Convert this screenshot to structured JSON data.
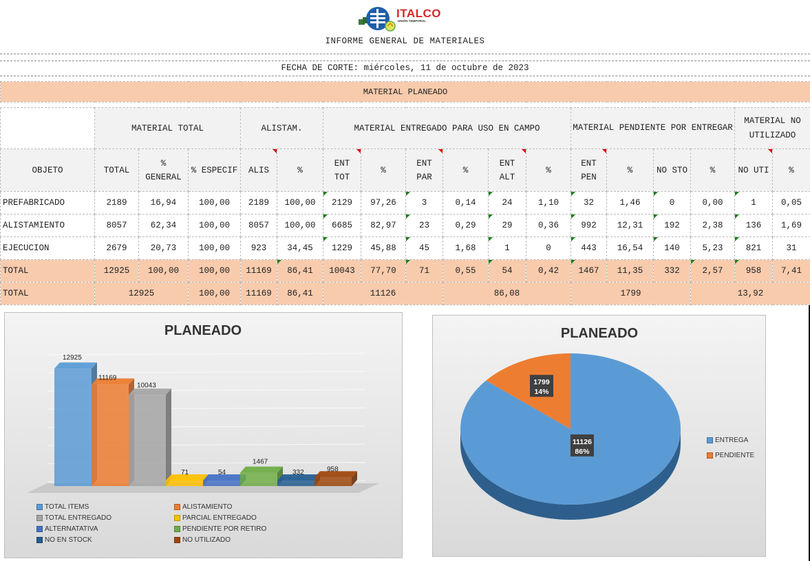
{
  "header": {
    "logo_text": "ITALCO",
    "logo_sub": "UNIÓN TEMPORAL",
    "report_title": "INFORME GENERAL DE MATERIALES",
    "cut_date": "FECHA DE CORTE: miércoles, 11 de octubre de 2023"
  },
  "table": {
    "section_title": "MATERIAL PLANEADO",
    "groups": {
      "total": "MATERIAL TOTAL",
      "alist": "ALISTAM.",
      "entregado": "MATERIAL ENTREGADO PARA USO EN CAMPO",
      "pendiente": "MATERIAL PENDIENTE POR ENTREGAR",
      "no_util": "MATERIAL NO UTILIZADO"
    },
    "columns": [
      "OBJETO",
      "TOTAL",
      "% GENERAL",
      "% ESPECIF",
      "ALIS",
      "%",
      "ENT TOT",
      "%",
      "ENT PAR",
      "%",
      "ENT ALT",
      "%",
      "ENT PEN",
      "%",
      "NO STO",
      "%",
      "NO UTI",
      "%"
    ],
    "rows": [
      {
        "cells": [
          "PREFABRICADO",
          "2189",
          "16,94",
          "100,00",
          "2189",
          "100,00",
          "2129",
          "97,26",
          "3",
          "0,14",
          "24",
          "1,10",
          "32",
          "1,46",
          "0",
          "0,00",
          "1",
          "0,05"
        ]
      },
      {
        "cells": [
          "ALISTAMIENTO",
          "8057",
          "62,34",
          "100,00",
          "8057",
          "100,00",
          "6685",
          "82,97",
          "23",
          "0,29",
          "29",
          "0,36",
          "992",
          "12,31",
          "192",
          "2,38",
          "136",
          "1,69"
        ]
      },
      {
        "cells": [
          "EJECUCION",
          "2679",
          "20,73",
          "100,00",
          "923",
          "34,45",
          "1229",
          "45,88",
          "45",
          "1,68",
          "1",
          "0",
          "443",
          "16,54",
          "140",
          "5,23",
          "821",
          "31"
        ]
      }
    ],
    "total_row": [
      "TOTAL",
      "12925",
      "100,00",
      "100,00",
      "11169",
      "86,41",
      "10043",
      "77,70",
      "71",
      "0,55",
      "54",
      "0,42",
      "1467",
      "11,35",
      "332",
      "2,57",
      "958",
      "7,41"
    ],
    "summary_row": {
      "label": "TOTAL",
      "total": "12925",
      "especif": "100,00",
      "alis": "11169",
      "alis_pct": "86,41",
      "entregado": "11126",
      "entregado_pct": "86,08",
      "pendiente": "1799",
      "no_util_pct": "13,92"
    }
  },
  "colors": {
    "table_highlight": "#f8cbad",
    "bar_series": [
      "#5b9bd5",
      "#ed7d31",
      "#a5a5a5",
      "#ffc000",
      "#4472c4",
      "#70ad47",
      "#255e91",
      "#9e480e"
    ],
    "pie_entrega": "#5b9bd5",
    "pie_pendiente": "#ed7d31"
  },
  "chart_data": [
    {
      "type": "bar",
      "title": "PLANEADO",
      "categories": [
        "TOTAL ITEMS",
        "ALISTAMIENTO",
        "TOTAL ENTREGADO",
        "PARCIAL ENTREGADO",
        "ALTERNATATIVA",
        "PENDIENTE POR RETIRO",
        "NO EN STOCK",
        "NO UTILIZADO"
      ],
      "values": [
        12925,
        11169,
        10043,
        71,
        54,
        1467,
        332,
        958
      ],
      "data_labels": [
        "12925",
        "11169",
        "10043",
        "71",
        "54",
        "1467",
        "332",
        "958"
      ],
      "ylim": [
        0,
        14000
      ],
      "grid": true,
      "legend_position": "bottom"
    },
    {
      "type": "pie",
      "title": "PLANEADO",
      "labels": [
        "ENTREGA",
        "PENDIENTE"
      ],
      "values": [
        11126,
        1799
      ],
      "percent_labels": [
        "86%",
        "14%"
      ],
      "legend_position": "right"
    }
  ]
}
